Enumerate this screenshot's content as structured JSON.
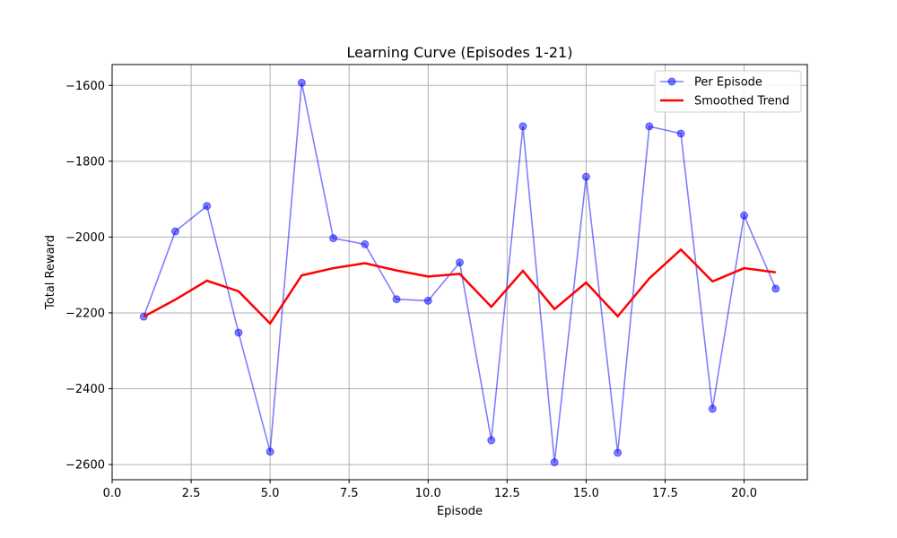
{
  "chart_data": {
    "type": "line",
    "title": "Learning Curve (Episodes 1-21)",
    "xlabel": "Episode",
    "ylabel": "Total Reward",
    "xlim": [
      0.0,
      22.0
    ],
    "ylim": [
      -2640,
      -1545
    ],
    "x_ticks": [
      0.0,
      2.5,
      5.0,
      7.5,
      10.0,
      12.5,
      15.0,
      17.5,
      20.0
    ],
    "x_tick_labels": [
      "0.0",
      "2.5",
      "5.0",
      "7.5",
      "10.0",
      "12.5",
      "15.0",
      "17.5",
      "20.0"
    ],
    "y_ticks": [
      -2600,
      -2400,
      -2200,
      -2000,
      -1800,
      -1600
    ],
    "y_tick_labels": [
      "−2600",
      "−2400",
      "−2200",
      "−2000",
      "−1800",
      "−1600"
    ],
    "grid": true,
    "legend_position": "top-right",
    "x": [
      1,
      2,
      3,
      4,
      5,
      6,
      7,
      8,
      9,
      10,
      11,
      12,
      13,
      14,
      15,
      16,
      17,
      18,
      19,
      20,
      21
    ],
    "series": [
      {
        "name": "Per Episode",
        "color": "#0000ff",
        "style": "line-with-markers",
        "values": [
          -2210,
          -1985,
          -1918,
          -2252,
          -2566,
          -1593,
          -2003,
          -2019,
          -2164,
          -2168,
          -2067,
          -2536,
          -1708,
          -2594,
          -1841,
          -2569,
          -1708,
          -1727,
          -2453,
          -1943,
          -2136
        ]
      },
      {
        "name": "Smoothed Trend",
        "color": "#ff0000",
        "style": "line",
        "values": [
          -2210,
          -2165,
          -2115,
          -2143,
          -2228,
          -2101,
          -2082,
          -2069,
          -2088,
          -2104,
          -2097,
          -2184,
          -2089,
          -2190,
          -2120,
          -2209,
          -2109,
          -2033,
          -2117,
          -2082,
          -2093
        ]
      }
    ]
  }
}
